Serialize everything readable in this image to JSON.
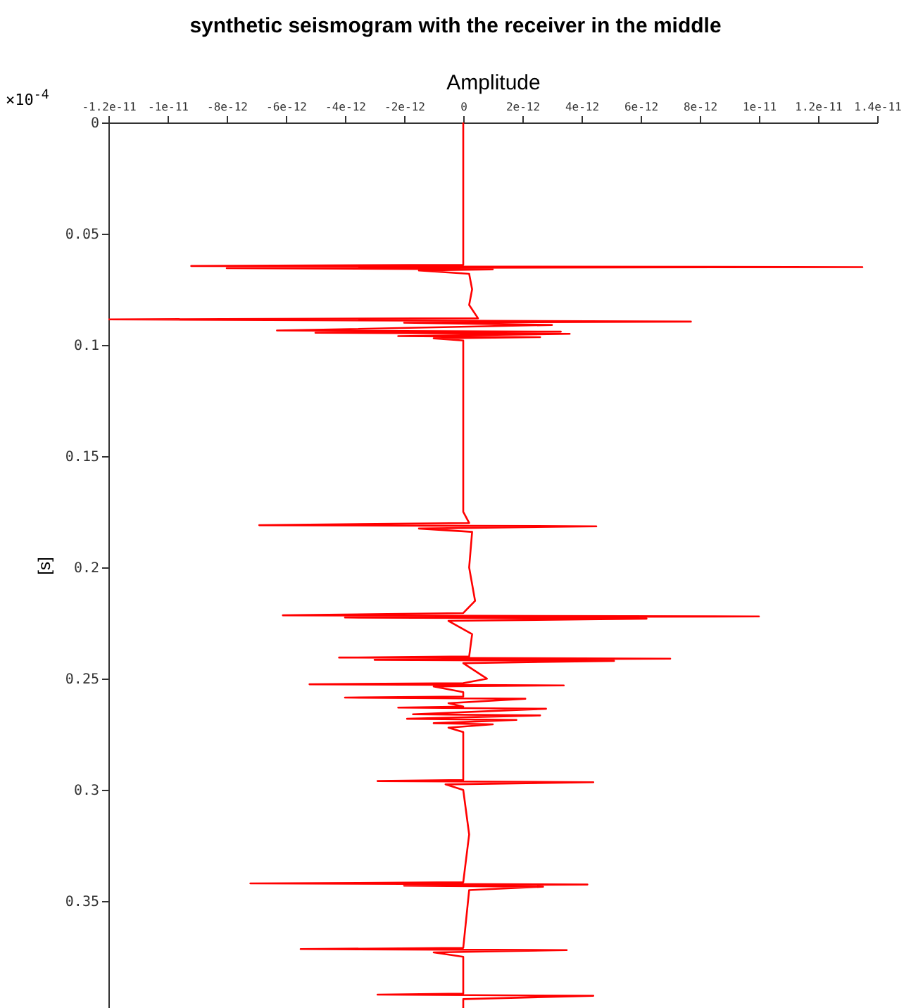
{
  "chart_data": {
    "type": "line",
    "title": "synthetic seismogram with the receiver in the middle",
    "xlabel": "Amplitude",
    "ylabel": "[s]",
    "annotations": [
      "×10$^{-4}$"
    ],
    "x": [
      0,
      0,
      -9.2e-12,
      1.35e-11,
      -8e-12,
      1e-12,
      -1.5e-12,
      2e-13,
      3e-13,
      2e-13,
      5e-13,
      -1.2e-11,
      7.7e-12,
      -2e-12,
      3e-12,
      -6.3e-12,
      3.3e-12,
      -5e-12,
      3.6e-12,
      -2.2e-12,
      2.6e-12,
      -1e-12,
      0,
      0,
      2e-13,
      -6.9e-12,
      4.5e-12,
      -1.5e-12,
      3e-13,
      2e-13,
      4e-13,
      0,
      -6.1e-12,
      1e-11,
      -4e-12,
      6.2e-12,
      -5e-13,
      3e-13,
      2e-13,
      -4.2e-12,
      7e-12,
      -3e-12,
      5.1e-12,
      0,
      8e-13,
      0,
      -5.2e-12,
      3.4e-12,
      -1e-12,
      0,
      0,
      -4e-12,
      2.1e-12,
      -5e-13,
      0,
      -2.2e-12,
      2.8e-12,
      -1.7e-12,
      2.6e-12,
      -1.9e-12,
      1.8e-12,
      -1e-12,
      1e-12,
      -5e-13,
      0,
      0,
      -2.9e-12,
      4.4e-12,
      -6e-13,
      0,
      2e-13,
      0,
      -7.2e-12,
      4.2e-12,
      -2e-12,
      2.7e-12,
      2e-13,
      0,
      -5.5e-12,
      3.5e-12,
      -1e-12,
      0,
      0,
      -2.9e-12,
      4.4e-12,
      0,
      0
    ],
    "series": [
      {
        "color": "#ff0000",
        "values": [
          0,
          0.064,
          0.0645,
          0.065,
          0.0655,
          0.066,
          0.0665,
          0.068,
          0.075,
          0.082,
          0.088,
          0.0885,
          0.0895,
          0.09,
          0.091,
          0.0935,
          0.094,
          0.0945,
          0.095,
          0.096,
          0.0965,
          0.097,
          0.098,
          0.175,
          0.18,
          0.181,
          0.1815,
          0.1825,
          0.184,
          0.2,
          0.215,
          0.2205,
          0.2215,
          0.222,
          0.2225,
          0.223,
          0.224,
          0.23,
          0.24,
          0.2405,
          0.241,
          0.2415,
          0.242,
          0.243,
          0.25,
          0.252,
          0.2525,
          0.253,
          0.2535,
          0.256,
          0.258,
          0.2585,
          0.259,
          0.261,
          0.2625,
          0.263,
          0.2635,
          0.266,
          0.2665,
          0.268,
          0.2685,
          0.27,
          0.2705,
          0.272,
          0.274,
          0.2955,
          0.296,
          0.2965,
          0.2975,
          0.3,
          0.32,
          0.3415,
          0.342,
          0.3425,
          0.343,
          0.3435,
          0.345,
          0.371,
          0.3715,
          0.372,
          0.373,
          0.375,
          0.3915,
          0.392,
          0.3925,
          0.394,
          0.398
        ]
      }
    ],
    "xlim": [
      -1.2e-11,
      1.4e-11
    ],
    "xticks": [
      {
        "value": -1.2e-11,
        "label": "-1.2e-11"
      },
      {
        "value": -1e-11,
        "label": "-1e-11"
      },
      {
        "value": -8e-12,
        "label": "-8e-12"
      },
      {
        "value": -6e-12,
        "label": "-6e-12"
      },
      {
        "value": -4e-12,
        "label": "-4e-12"
      },
      {
        "value": -2e-12,
        "label": "-2e-12"
      },
      0,
      {
        "value": 2e-12,
        "label": "2e-12"
      },
      {
        "value": 4e-12,
        "label": "4e-12"
      },
      {
        "value": 6e-12,
        "label": "6e-12"
      },
      {
        "value": 8e-12,
        "label": "8e-12"
      },
      {
        "value": 1e-11,
        "label": "1e-11"
      },
      {
        "value": 1.2e-11,
        "label": "1.2e-11"
      },
      {
        "value": 1.4e-11,
        "label": "1.4e-11"
      }
    ],
    "ylim": [
      0.398,
      0
    ],
    "yticks": [
      0,
      0.05,
      0.1,
      0.15,
      0.2,
      0.25,
      0.3,
      0.35
    ],
    "grid": false
  }
}
